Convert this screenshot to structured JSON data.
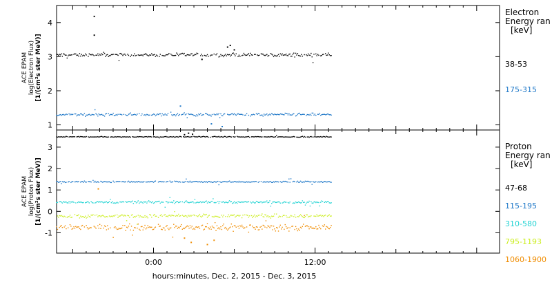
{
  "chart_data": [
    {
      "type": "scatter",
      "panel": "electron",
      "ylabel_lines": [
        "ACE EPAM",
        "log(Electron Flux)",
        "[1/(cm²s ster MeV)]"
      ],
      "legend_title": [
        "Electron",
        "Energy ran",
        "[keV]"
      ],
      "ylim": [
        0.85,
        4.5
      ],
      "yticks": [
        1,
        2,
        3,
        4
      ],
      "series": [
        {
          "name": "38-53",
          "color": "#000000",
          "base": 3.05,
          "noise": 0.07,
          "events": [
            {
              "x": -4.4,
              "y": 4.18
            },
            {
              "x": -4.4,
              "y": 3.63
            },
            {
              "x": 3.6,
              "y": 2.92
            },
            {
              "x": 5.5,
              "y": 3.28
            },
            {
              "x": 5.7,
              "y": 3.33
            },
            {
              "x": 6.0,
              "y": 3.2
            }
          ]
        },
        {
          "name": "175-315",
          "color": "#1f78c8",
          "base": 1.3,
          "noise": 0.06,
          "events": [
            {
              "x": 2.0,
              "y": 1.55
            },
            {
              "x": 4.3,
              "y": 1.03
            },
            {
              "x": 5.1,
              "y": 0.95
            }
          ]
        }
      ]
    },
    {
      "type": "scatter",
      "panel": "proton",
      "ylabel_lines": [
        "ACE EPAM",
        "log(Proton Flux)",
        "[1/(cm²s ster MeV)]"
      ],
      "legend_title": [
        "Proton",
        "Energy ran",
        "[keV]"
      ],
      "ylim": [
        -1.95,
        3.8
      ],
      "yticks": [
        -1,
        0,
        1,
        2,
        3
      ],
      "series": [
        {
          "name": "47-68",
          "color": "#000000",
          "base": 3.48,
          "noise": 0.03,
          "events": [
            {
              "x": 2.3,
              "y": 3.58
            },
            {
              "x": 2.6,
              "y": 3.65
            },
            {
              "x": 2.9,
              "y": 3.6
            }
          ]
        },
        {
          "name": "115-195",
          "color": "#1f78c8",
          "base": 1.38,
          "noise": 0.05,
          "events": []
        },
        {
          "name": "310-580",
          "color": "#22d3d3",
          "base": 0.43,
          "noise": 0.08,
          "events": []
        },
        {
          "name": "795-1193",
          "color": "#ccee22",
          "base": -0.22,
          "noise": 0.13,
          "events": []
        },
        {
          "name": "1060-1900",
          "color": "#f08c00",
          "base": -0.75,
          "noise": 0.2,
          "events": [
            {
              "x": -4.1,
              "y": 1.05
            },
            {
              "x": 2.3,
              "y": -1.25
            },
            {
              "x": 2.8,
              "y": -1.45
            },
            {
              "x": 4.0,
              "y": -1.55
            },
            {
              "x": 4.5,
              "y": -1.35
            }
          ]
        }
      ]
    }
  ],
  "x_axis": {
    "xlim": [
      -7.2,
      25.7
    ],
    "data_range": [
      -7.2,
      13.2
    ],
    "ticks": [
      {
        "value": 0,
        "label": "0:00"
      },
      {
        "value": 12,
        "label": "12:00"
      }
    ],
    "title": "hours:minutes, Dec.  2, 2015 - Dec.  3, 2015"
  }
}
